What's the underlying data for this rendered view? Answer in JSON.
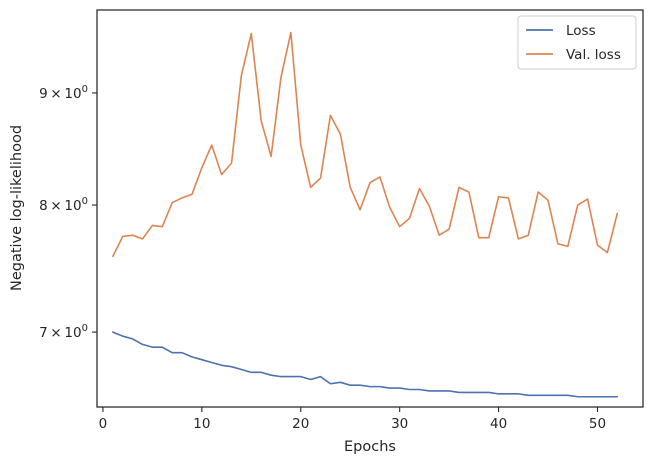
{
  "chart_data": {
    "type": "line",
    "title": "",
    "xlabel": "Epochs",
    "ylabel": "Negative log-likelihood",
    "xlim": [
      -0.6,
      54.6
    ],
    "ylim": [
      6.47,
      9.82
    ],
    "yscale": "log",
    "grid": false,
    "legend": {
      "placement": "top-right"
    },
    "x_ticks": [
      {
        "value": 0,
        "label": "0"
      },
      {
        "value": 10,
        "label": "10"
      },
      {
        "value": 20,
        "label": "20"
      },
      {
        "value": 30,
        "label": "30"
      },
      {
        "value": 40,
        "label": "40"
      },
      {
        "value": 50,
        "label": "50"
      }
    ],
    "y_ticks": [
      {
        "value": 7,
        "base": "7",
        "times": "×",
        "power": "10",
        "exp": "0"
      },
      {
        "value": 8,
        "base": "8",
        "times": "×",
        "power": "10",
        "exp": "0"
      },
      {
        "value": 9,
        "base": "9",
        "times": "×",
        "power": "10",
        "exp": "0"
      }
    ],
    "x": [
      1,
      2,
      3,
      4,
      5,
      6,
      7,
      8,
      9,
      10,
      11,
      12,
      13,
      14,
      15,
      16,
      17,
      18,
      19,
      20,
      21,
      22,
      23,
      24,
      25,
      26,
      27,
      28,
      29,
      30,
      31,
      32,
      33,
      34,
      35,
      36,
      37,
      38,
      39,
      40,
      41,
      42,
      43,
      44,
      45,
      46,
      47,
      48,
      49,
      50,
      51,
      52
    ],
    "series": [
      {
        "name": "Loss",
        "color": "#4c72b0",
        "values": [
          7.0,
          6.97,
          6.95,
          6.91,
          6.89,
          6.89,
          6.85,
          6.85,
          6.82,
          6.8,
          6.78,
          6.76,
          6.75,
          6.73,
          6.71,
          6.71,
          6.69,
          6.68,
          6.68,
          6.68,
          6.66,
          6.68,
          6.63,
          6.64,
          6.62,
          6.62,
          6.61,
          6.61,
          6.6,
          6.6,
          6.59,
          6.59,
          6.58,
          6.58,
          6.58,
          6.57,
          6.57,
          6.57,
          6.57,
          6.56,
          6.56,
          6.56,
          6.55,
          6.55,
          6.55,
          6.55,
          6.55,
          6.54,
          6.54,
          6.54,
          6.54,
          6.54
        ]
      },
      {
        "name": "Val. loss",
        "color": "#dd8452",
        "values": [
          7.58,
          7.74,
          7.75,
          7.72,
          7.83,
          7.82,
          8.02,
          8.06,
          8.09,
          8.32,
          8.52,
          8.26,
          8.36,
          9.17,
          9.58,
          8.74,
          8.42,
          9.15,
          9.59,
          8.52,
          8.15,
          8.23,
          8.79,
          8.62,
          8.15,
          7.96,
          8.19,
          8.24,
          7.98,
          7.82,
          7.89,
          8.14,
          7.99,
          7.75,
          7.8,
          8.15,
          8.11,
          7.73,
          7.73,
          8.07,
          8.06,
          7.72,
          7.75,
          8.11,
          8.04,
          7.68,
          7.66,
          8.0,
          8.05,
          7.67,
          7.61,
          7.93
        ]
      }
    ]
  }
}
